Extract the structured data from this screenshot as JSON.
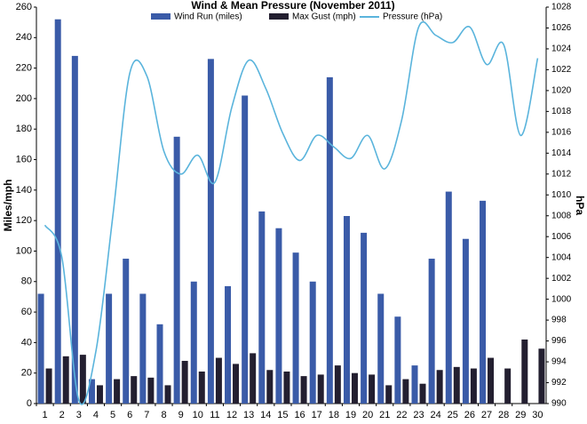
{
  "chart_data": {
    "type": "bar-line",
    "title": "Wind & Mean Pressure (November 2011)",
    "y_label": "Miles/mph",
    "y2_label": "hPa",
    "categories": [
      "1",
      "2",
      "3",
      "4",
      "5",
      "6",
      "7",
      "8",
      "9",
      "10",
      "11",
      "12",
      "13",
      "14",
      "15",
      "16",
      "17",
      "18",
      "19",
      "20",
      "21",
      "22",
      "23",
      "24",
      "25",
      "26",
      "27",
      "28",
      "29",
      "30"
    ],
    "series": [
      {
        "name": "Wind Run (miles)",
        "color": "#3a5ba8",
        "kind": "bar",
        "values": [
          72,
          252,
          228,
          16,
          72,
          95,
          72,
          52,
          175,
          80,
          226,
          77,
          202,
          126,
          115,
          99,
          80,
          214,
          123,
          112,
          72,
          57,
          25,
          95,
          139,
          108,
          133,
          null,
          null,
          null
        ]
      },
      {
        "name": "Max Gust (mph)",
        "color": "#231f30",
        "kind": "bar",
        "values": [
          23,
          31,
          32,
          12,
          16,
          18,
          17,
          12,
          28,
          21,
          30,
          26,
          33,
          22,
          21,
          18,
          19,
          25,
          20,
          19,
          12,
          16,
          13,
          22,
          24,
          23,
          30,
          23,
          42,
          36
        ]
      },
      {
        "name": "Pressure (hPa)",
        "color": "#5ab4dc",
        "kind": "line",
        "axis": "y2",
        "values": [
          1007.1,
          1004,
          990.3,
          995,
          1008,
          1021.7,
          1021.4,
          1014.2,
          1012,
          1013.8,
          1011.2,
          1018.4,
          1022.9,
          1020.2,
          1015.9,
          1013.3,
          1015.7,
          1014.6,
          1013.5,
          1015.7,
          1012.5,
          1017.2,
          1026.1,
          1025.3,
          1024.6,
          1026.1,
          1022.5,
          1024.4,
          1015.7,
          1023.1
        ]
      }
    ],
    "ylim": [
      0,
      260
    ],
    "yticks": [
      0,
      20,
      40,
      60,
      80,
      100,
      120,
      140,
      160,
      180,
      200,
      220,
      240,
      260
    ],
    "y2lim": [
      990,
      1028
    ],
    "y2ticks": [
      990,
      992,
      994,
      996,
      998,
      1000,
      1002,
      1004,
      1006,
      1008,
      1010,
      1012,
      1014,
      1016,
      1018,
      1020,
      1022,
      1024,
      1026,
      1028
    ],
    "grid": false,
    "legend": "top"
  }
}
